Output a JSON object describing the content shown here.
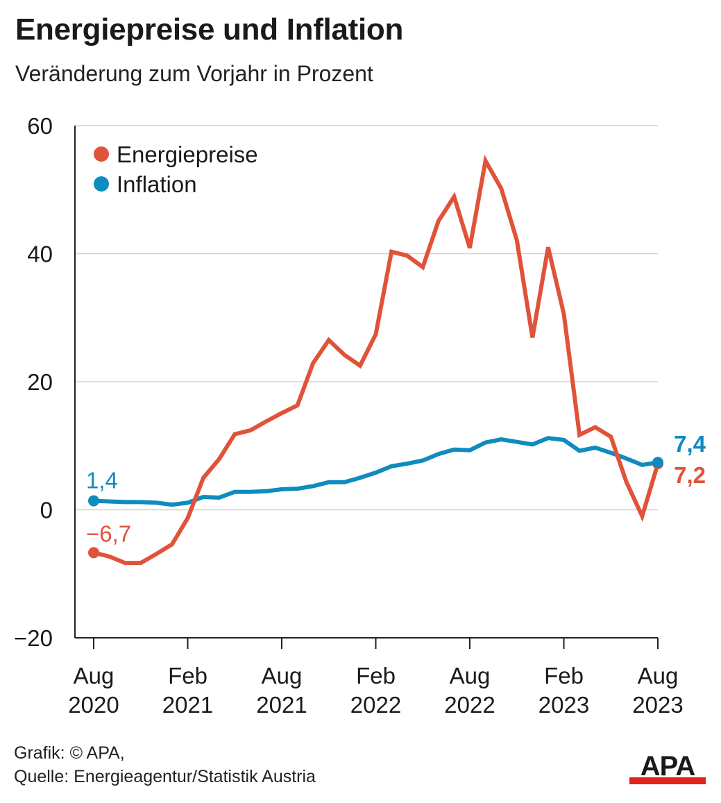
{
  "header": {
    "title": "Energiepreise und Inflation",
    "subtitle": "Veränderung zum Vorjahr in Prozent"
  },
  "footer": {
    "credit": "Grafik: © APA,",
    "source": "Quelle: Energieagentur/Statistik Austria"
  },
  "logo": {
    "text": "APA",
    "colors": {
      "dark": "#1a1a1a",
      "accent": "#e3231b"
    }
  },
  "chart_data": {
    "type": "line",
    "title": "Energiepreise und Inflation",
    "subtitle": "Veränderung zum Vorjahr in Prozent",
    "ylim": [
      -20,
      60
    ],
    "yticks": [
      -20,
      0,
      20,
      40,
      60
    ],
    "ytick_labels": [
      "−20",
      "0",
      "20",
      "40",
      "60"
    ],
    "grid": true,
    "legend_position": "top-left",
    "x": [
      "2020-08",
      "2020-09",
      "2020-10",
      "2020-11",
      "2020-12",
      "2021-01",
      "2021-02",
      "2021-03",
      "2021-04",
      "2021-05",
      "2021-06",
      "2021-07",
      "2021-08",
      "2021-09",
      "2021-10",
      "2021-11",
      "2021-12",
      "2022-01",
      "2022-02",
      "2022-03",
      "2022-04",
      "2022-05",
      "2022-06",
      "2022-07",
      "2022-08",
      "2022-09",
      "2022-10",
      "2022-11",
      "2022-12",
      "2023-01",
      "2023-02",
      "2023-03",
      "2023-04",
      "2023-05",
      "2023-06",
      "2023-07",
      "2023-08"
    ],
    "xticks": [
      {
        "x": "2020-08",
        "label": [
          "Aug",
          "2020"
        ]
      },
      {
        "x": "2021-02",
        "label": [
          "Feb",
          "2021"
        ]
      },
      {
        "x": "2021-08",
        "label": [
          "Aug",
          "2021"
        ]
      },
      {
        "x": "2022-02",
        "label": [
          "Feb",
          "2022"
        ]
      },
      {
        "x": "2022-08",
        "label": [
          "Aug",
          "2022"
        ]
      },
      {
        "x": "2023-02",
        "label": [
          "Feb",
          "2023"
        ]
      },
      {
        "x": "2023-08",
        "label": [
          "Aug",
          "2023"
        ]
      }
    ],
    "series": [
      {
        "name": "Energiepreise",
        "color": "#e0533a",
        "values": [
          -6.7,
          -7.3,
          -8.3,
          -8.3,
          -6.9,
          -5.4,
          -1.3,
          5.0,
          7.9,
          11.8,
          12.4,
          13.8,
          15.1,
          16.3,
          22.9,
          26.5,
          24.2,
          22.5,
          27.4,
          40.3,
          39.7,
          37.9,
          45.1,
          48.9,
          40.9,
          54.5,
          50.2,
          42.1,
          26.9,
          41.0,
          30.6,
          11.7,
          12.9,
          11.4,
          4.3,
          -1.0,
          7.2
        ],
        "start_label": "−6,7",
        "end_label": "7,2"
      },
      {
        "name": "Inflation",
        "color": "#0e8bbf",
        "values": [
          1.4,
          1.3,
          1.2,
          1.2,
          1.1,
          0.8,
          1.1,
          2.0,
          1.9,
          2.8,
          2.8,
          2.9,
          3.2,
          3.3,
          3.7,
          4.3,
          4.3,
          5.0,
          5.8,
          6.8,
          7.2,
          7.7,
          8.7,
          9.4,
          9.3,
          10.5,
          11.0,
          10.6,
          10.2,
          11.2,
          10.9,
          9.2,
          9.7,
          8.9,
          8.0,
          7.0,
          7.4
        ],
        "start_label": "1,4",
        "end_label": "7,4"
      }
    ]
  }
}
